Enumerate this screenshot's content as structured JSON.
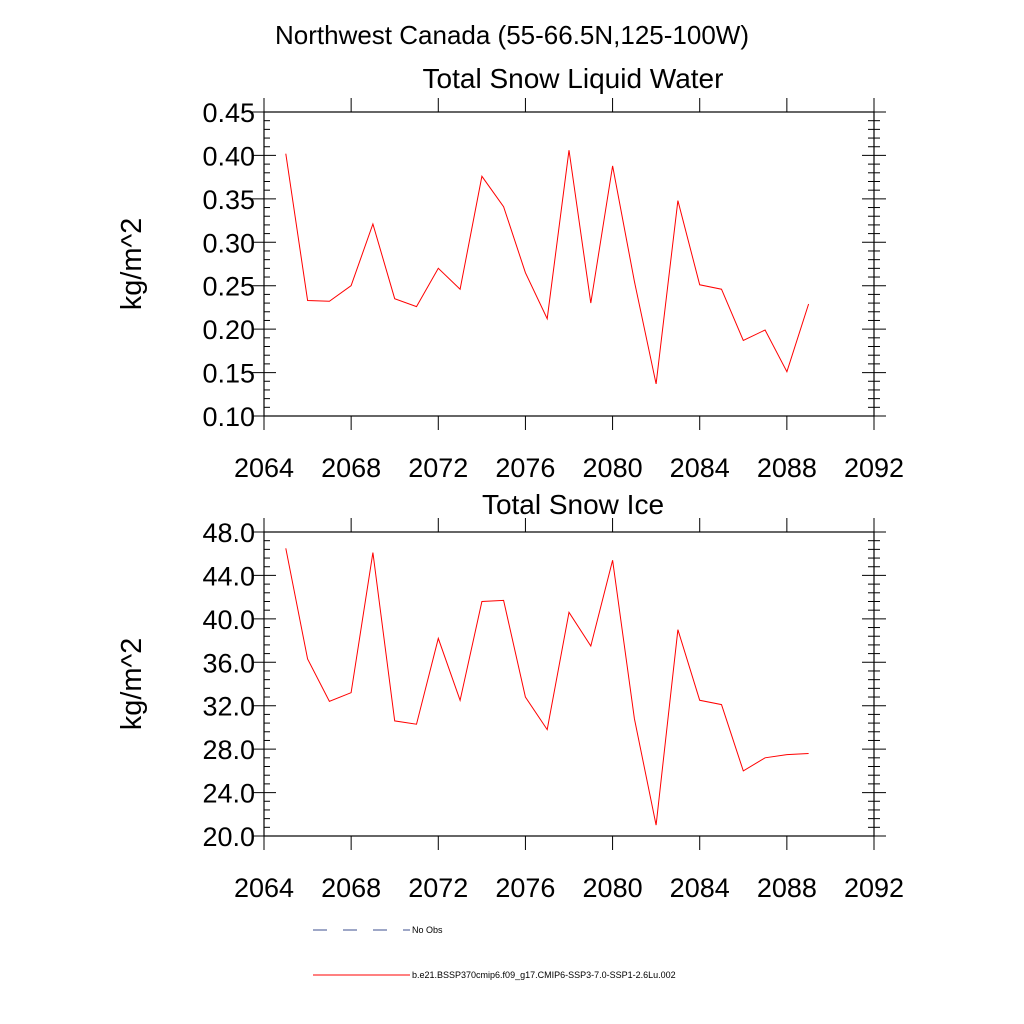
{
  "figure": {
    "title": "Northwest Canada (55-66.5N,125-100W)"
  },
  "chart_data": [
    {
      "type": "line",
      "title": "Total Snow Liquid Water",
      "xlabel": "",
      "ylabel": "kg/m^2",
      "xlim": [
        2064,
        2092
      ],
      "ylim": [
        0.1,
        0.45
      ],
      "x_ticks": [
        "2064",
        "2068",
        "2072",
        "2076",
        "2080",
        "2084",
        "2088",
        "2092"
      ],
      "y_ticks": [
        "0.10",
        "0.15",
        "0.20",
        "0.25",
        "0.30",
        "0.35",
        "0.40",
        "0.45"
      ],
      "grid": false,
      "x": [
        2065,
        2066,
        2067,
        2068,
        2069,
        2070,
        2071,
        2072,
        2073,
        2074,
        2075,
        2076,
        2077,
        2078,
        2079,
        2080,
        2081,
        2082,
        2083,
        2084,
        2085,
        2086,
        2087,
        2088,
        2089
      ],
      "series": [
        {
          "color": "#ff0000",
          "values": [
            0.402,
            0.233,
            0.232,
            0.25,
            0.321,
            0.235,
            0.226,
            0.27,
            0.246,
            0.376,
            0.341,
            0.265,
            0.212,
            0.406,
            0.23,
            0.388,
            0.255,
            0.137,
            0.348,
            0.251,
            0.246,
            0.187,
            0.199,
            0.151,
            0.229
          ]
        }
      ]
    },
    {
      "type": "line",
      "title": "Total Snow Ice",
      "xlabel": "",
      "ylabel": "kg/m^2",
      "xlim": [
        2064,
        2092
      ],
      "ylim": [
        20.0,
        48.0
      ],
      "x_ticks": [
        "2064",
        "2068",
        "2072",
        "2076",
        "2080",
        "2084",
        "2088",
        "2092"
      ],
      "y_ticks": [
        "20.0",
        "24.0",
        "28.0",
        "32.0",
        "36.0",
        "40.0",
        "44.0",
        "48.0"
      ],
      "grid": false,
      "x": [
        2065,
        2066,
        2067,
        2068,
        2069,
        2070,
        2071,
        2072,
        2073,
        2074,
        2075,
        2076,
        2077,
        2078,
        2079,
        2080,
        2081,
        2082,
        2083,
        2084,
        2085,
        2086,
        2087,
        2088,
        2089
      ],
      "series": [
        {
          "color": "#ff0000",
          "values": [
            46.5,
            36.3,
            32.4,
            33.2,
            46.1,
            30.6,
            30.3,
            38.2,
            32.5,
            41.6,
            41.7,
            32.8,
            29.8,
            40.6,
            37.5,
            45.4,
            30.8,
            21.0,
            39.0,
            32.5,
            32.1,
            26.0,
            27.2,
            27.5,
            27.6
          ]
        }
      ]
    }
  ],
  "legend": {
    "placement": "bottom",
    "items": [
      {
        "label": "No Obs",
        "color": "#3d4f8f",
        "style": "dashed"
      },
      {
        "label": "b.e21.BSSP370cmip6.f09_g17.CMIP6-SSP3-7.0-SSP1-2.6Lu.002",
        "color": "#ff0000",
        "style": "solid"
      }
    ]
  }
}
